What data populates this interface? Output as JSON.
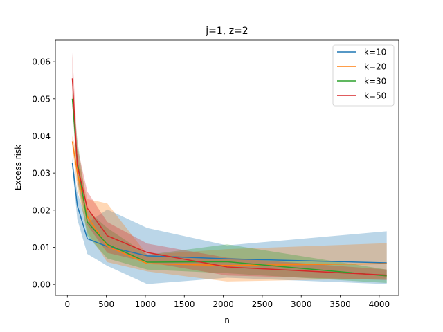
{
  "chart_data": {
    "type": "line",
    "title": "j=1, z=2",
    "xlabel": "n",
    "ylabel": "Excess risk",
    "xlim": [
      -153.6,
      4249.6
    ],
    "ylim": [
      -0.00295,
      0.0658
    ],
    "xticks": [
      0,
      500,
      1000,
      1500,
      2000,
      2500,
      3000,
      3500,
      4000
    ],
    "yticks": [
      0.0,
      0.01,
      0.02,
      0.03,
      0.04,
      0.05,
      0.06
    ],
    "ytick_labels": [
      "0.00",
      "0.01",
      "0.02",
      "0.03",
      "0.04",
      "0.05",
      "0.06"
    ],
    "grid": false,
    "legend_position": "top-right",
    "x": [
      64,
      128,
      256,
      512,
      1024,
      2048,
      4096
    ],
    "series": [
      {
        "name": "k=10",
        "color": "#1f77b4",
        "values": [
          0.0327,
          0.0212,
          0.0123,
          0.0102,
          0.0077,
          0.0069,
          0.0058
        ],
        "lower": [
          0.0315,
          0.0175,
          0.0082,
          0.005,
          0.0001,
          0.0018,
          0.0001
        ],
        "upper": [
          0.034,
          0.0249,
          0.0165,
          0.0202,
          0.0152,
          0.0105,
          0.0143
        ]
      },
      {
        "name": "k=20",
        "color": "#ff7f0e",
        "values": [
          0.0385,
          0.03,
          0.0183,
          0.0103,
          0.0056,
          0.0051,
          0.0056
        ],
        "lower": [
          0.037,
          0.026,
          0.014,
          0.006,
          0.0035,
          0.0008,
          0.0016
        ],
        "upper": [
          0.04,
          0.035,
          0.023,
          0.0218,
          0.008,
          0.0095,
          0.0111
        ]
      },
      {
        "name": "k=30",
        "color": "#2ca02c",
        "values": [
          0.05,
          0.033,
          0.0168,
          0.0108,
          0.006,
          0.0061,
          0.0023
        ],
        "lower": [
          0.048,
          0.028,
          0.013,
          0.007,
          0.004,
          0.003,
          0.0004
        ],
        "upper": [
          0.052,
          0.039,
          0.02,
          0.0152,
          0.008,
          0.0108,
          0.004
        ]
      },
      {
        "name": "k=50",
        "color": "#d62728",
        "values": [
          0.0555,
          0.032,
          0.0205,
          0.0131,
          0.0086,
          0.0047,
          0.0025
        ],
        "lower": [
          0.049,
          0.028,
          0.016,
          0.0085,
          0.006,
          0.0024,
          0.0012
        ],
        "upper": [
          0.0625,
          0.037,
          0.025,
          0.0168,
          0.011,
          0.0072,
          0.004
        ]
      }
    ]
  }
}
